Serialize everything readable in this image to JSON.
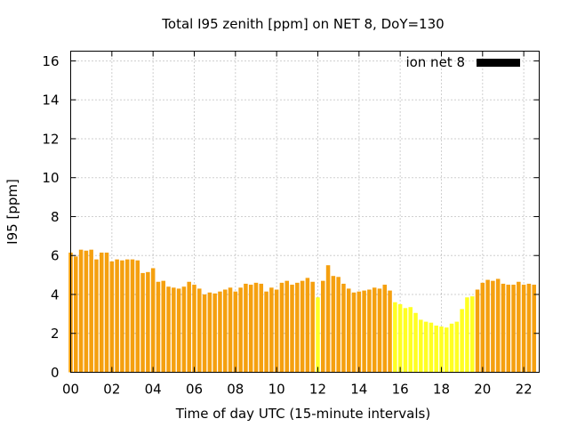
{
  "chart_data": {
    "type": "bar",
    "title": "Total I95 zenith [ppm] on NET 8, DoY=130",
    "xlabel": "Time of day UTC (15-minute intervals)",
    "ylabel": "I95 [ppm]",
    "xlim": [
      0,
      22.75
    ],
    "ylim": [
      0,
      16.5
    ],
    "x_ticks": [
      0,
      2,
      4,
      6,
      8,
      10,
      12,
      14,
      16,
      18,
      20,
      22
    ],
    "x_tick_labels": [
      "00",
      "02",
      "04",
      "06",
      "08",
      "10",
      "12",
      "14",
      "16",
      "18",
      "20",
      "22"
    ],
    "y_ticks": [
      0,
      2,
      4,
      6,
      8,
      10,
      12,
      14,
      16
    ],
    "y_tick_labels": [
      "0",
      "2",
      "4",
      "6",
      "8",
      "10",
      "12",
      "14",
      "16"
    ],
    "grid": true,
    "legend_position": "top-right",
    "interval_hours": 0.25,
    "series": [
      {
        "name": "ion net 8",
        "legend_color": "#000000",
        "color_normal": "#f5a00f",
        "color_low": "#ffff22",
        "values": [
          6.15,
          5.95,
          6.3,
          6.25,
          6.3,
          5.8,
          6.15,
          6.15,
          5.7,
          5.8,
          5.75,
          5.8,
          5.8,
          5.75,
          5.1,
          5.15,
          5.35,
          4.65,
          4.7,
          4.4,
          4.35,
          4.3,
          4.4,
          4.65,
          4.5,
          4.3,
          4.0,
          4.1,
          4.05,
          4.15,
          4.25,
          4.35,
          4.15,
          4.35,
          4.55,
          4.5,
          4.6,
          4.55,
          4.15,
          4.35,
          4.25,
          4.6,
          4.7,
          4.5,
          4.6,
          4.7,
          4.85,
          4.65,
          3.85,
          4.7,
          5.5,
          4.95,
          4.9,
          4.55,
          4.3,
          4.1,
          4.15,
          4.2,
          4.25,
          4.35,
          4.3,
          4.5,
          4.2,
          3.6,
          3.5,
          3.3,
          3.35,
          3.05,
          2.7,
          2.6,
          2.55,
          2.4,
          2.35,
          2.3,
          2.5,
          2.6,
          3.25,
          3.85,
          3.9,
          4.25,
          4.6,
          4.75,
          4.7,
          4.8,
          4.55,
          4.5,
          4.5,
          4.65,
          4.5,
          4.55,
          4.5
        ],
        "low_flags": [
          0,
          0,
          0,
          0,
          0,
          0,
          0,
          0,
          0,
          0,
          0,
          0,
          0,
          0,
          0,
          0,
          0,
          0,
          0,
          0,
          0,
          0,
          0,
          0,
          0,
          0,
          0,
          0,
          0,
          0,
          0,
          0,
          0,
          0,
          0,
          0,
          0,
          0,
          0,
          0,
          0,
          0,
          0,
          0,
          0,
          0,
          0,
          0,
          1,
          0,
          0,
          0,
          0,
          0,
          0,
          0,
          0,
          0,
          0,
          0,
          0,
          0,
          0,
          1,
          1,
          1,
          1,
          1,
          1,
          1,
          1,
          1,
          1,
          1,
          1,
          1,
          1,
          1,
          1,
          0,
          0,
          0,
          0,
          0,
          0,
          0,
          0,
          0,
          0,
          0,
          0
        ]
      }
    ]
  }
}
